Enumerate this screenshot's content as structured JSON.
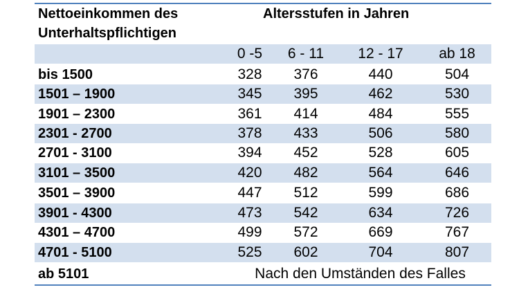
{
  "header": {
    "left_line1": "Nettoeinkommen des",
    "left_line2": "Unterhaltspflichtigen",
    "right": "Altersstufen in Jahren"
  },
  "age_groups": [
    "0 -5",
    "6 - 11",
    "12 - 17",
    "ab 18"
  ],
  "rows": [
    {
      "income": "bis 1500",
      "values": [
        "328",
        "376",
        "440",
        "504"
      ]
    },
    {
      "income": "1501 – 1900",
      "values": [
        "345",
        "395",
        "462",
        "530"
      ]
    },
    {
      "income": "1901 – 2300",
      "values": [
        "361",
        "414",
        "484",
        "555"
      ]
    },
    {
      "income": "2301 - 2700",
      "values": [
        "378",
        "433",
        "506",
        "580"
      ]
    },
    {
      "income": "2701 - 3100",
      "values": [
        "394",
        "452",
        "528",
        "605"
      ]
    },
    {
      "income": "3101 – 3500",
      "values": [
        "420",
        "482",
        "564",
        "646"
      ]
    },
    {
      "income": "3501 – 3900",
      "values": [
        "447",
        "512",
        "599",
        "686"
      ]
    },
    {
      "income": "3901 - 4300",
      "values": [
        "473",
        "542",
        "634",
        "726"
      ]
    },
    {
      "income": "4301 – 4700",
      "values": [
        "499",
        "572",
        "669",
        "767"
      ]
    },
    {
      "income": "4701 - 5100",
      "values": [
        "525",
        "602",
        "704",
        "807"
      ]
    }
  ],
  "last_row": {
    "income": "ab 5101",
    "note": "Nach den Umständen des Falles"
  },
  "colors": {
    "border": "#4f81bd",
    "shaded_row": "#d3dfee"
  }
}
